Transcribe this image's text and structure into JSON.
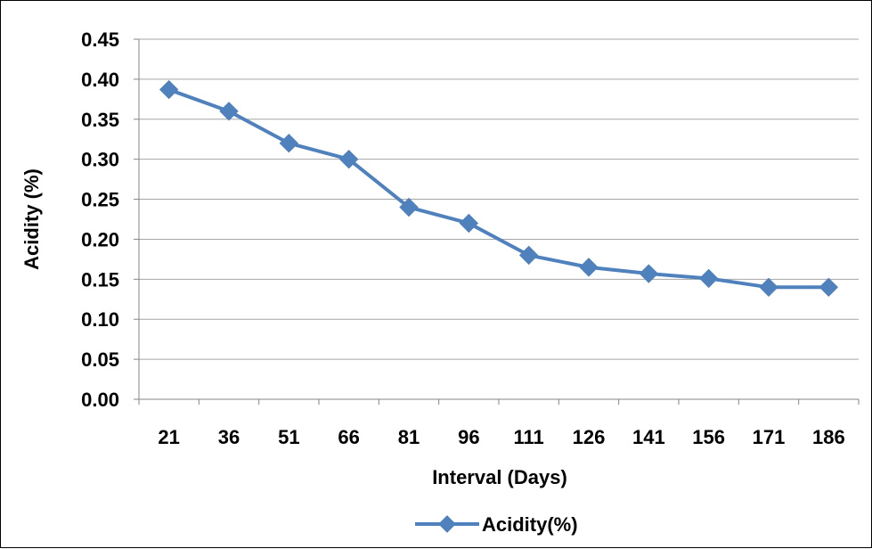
{
  "chart_data": {
    "type": "line",
    "title": "",
    "xlabel": "Interval (Days)",
    "ylabel": "Acidity (%)",
    "categories": [
      "21",
      "36",
      "51",
      "66",
      "81",
      "96",
      "111",
      "126",
      "141",
      "156",
      "171",
      "186"
    ],
    "y_ticks": [
      "0.00",
      "0.05",
      "0.10",
      "0.15",
      "0.20",
      "0.25",
      "0.30",
      "0.35",
      "0.40",
      "0.45"
    ],
    "ylim": [
      0,
      0.45
    ],
    "grid": true,
    "legend_position": "bottom",
    "series": [
      {
        "name": "Acidity(%)",
        "color": "#4f81bd",
        "marker": "diamond",
        "values": [
          0.387,
          0.36,
          0.32,
          0.3,
          0.24,
          0.22,
          0.18,
          0.165,
          0.157,
          0.151,
          0.14,
          0.14
        ]
      }
    ]
  }
}
